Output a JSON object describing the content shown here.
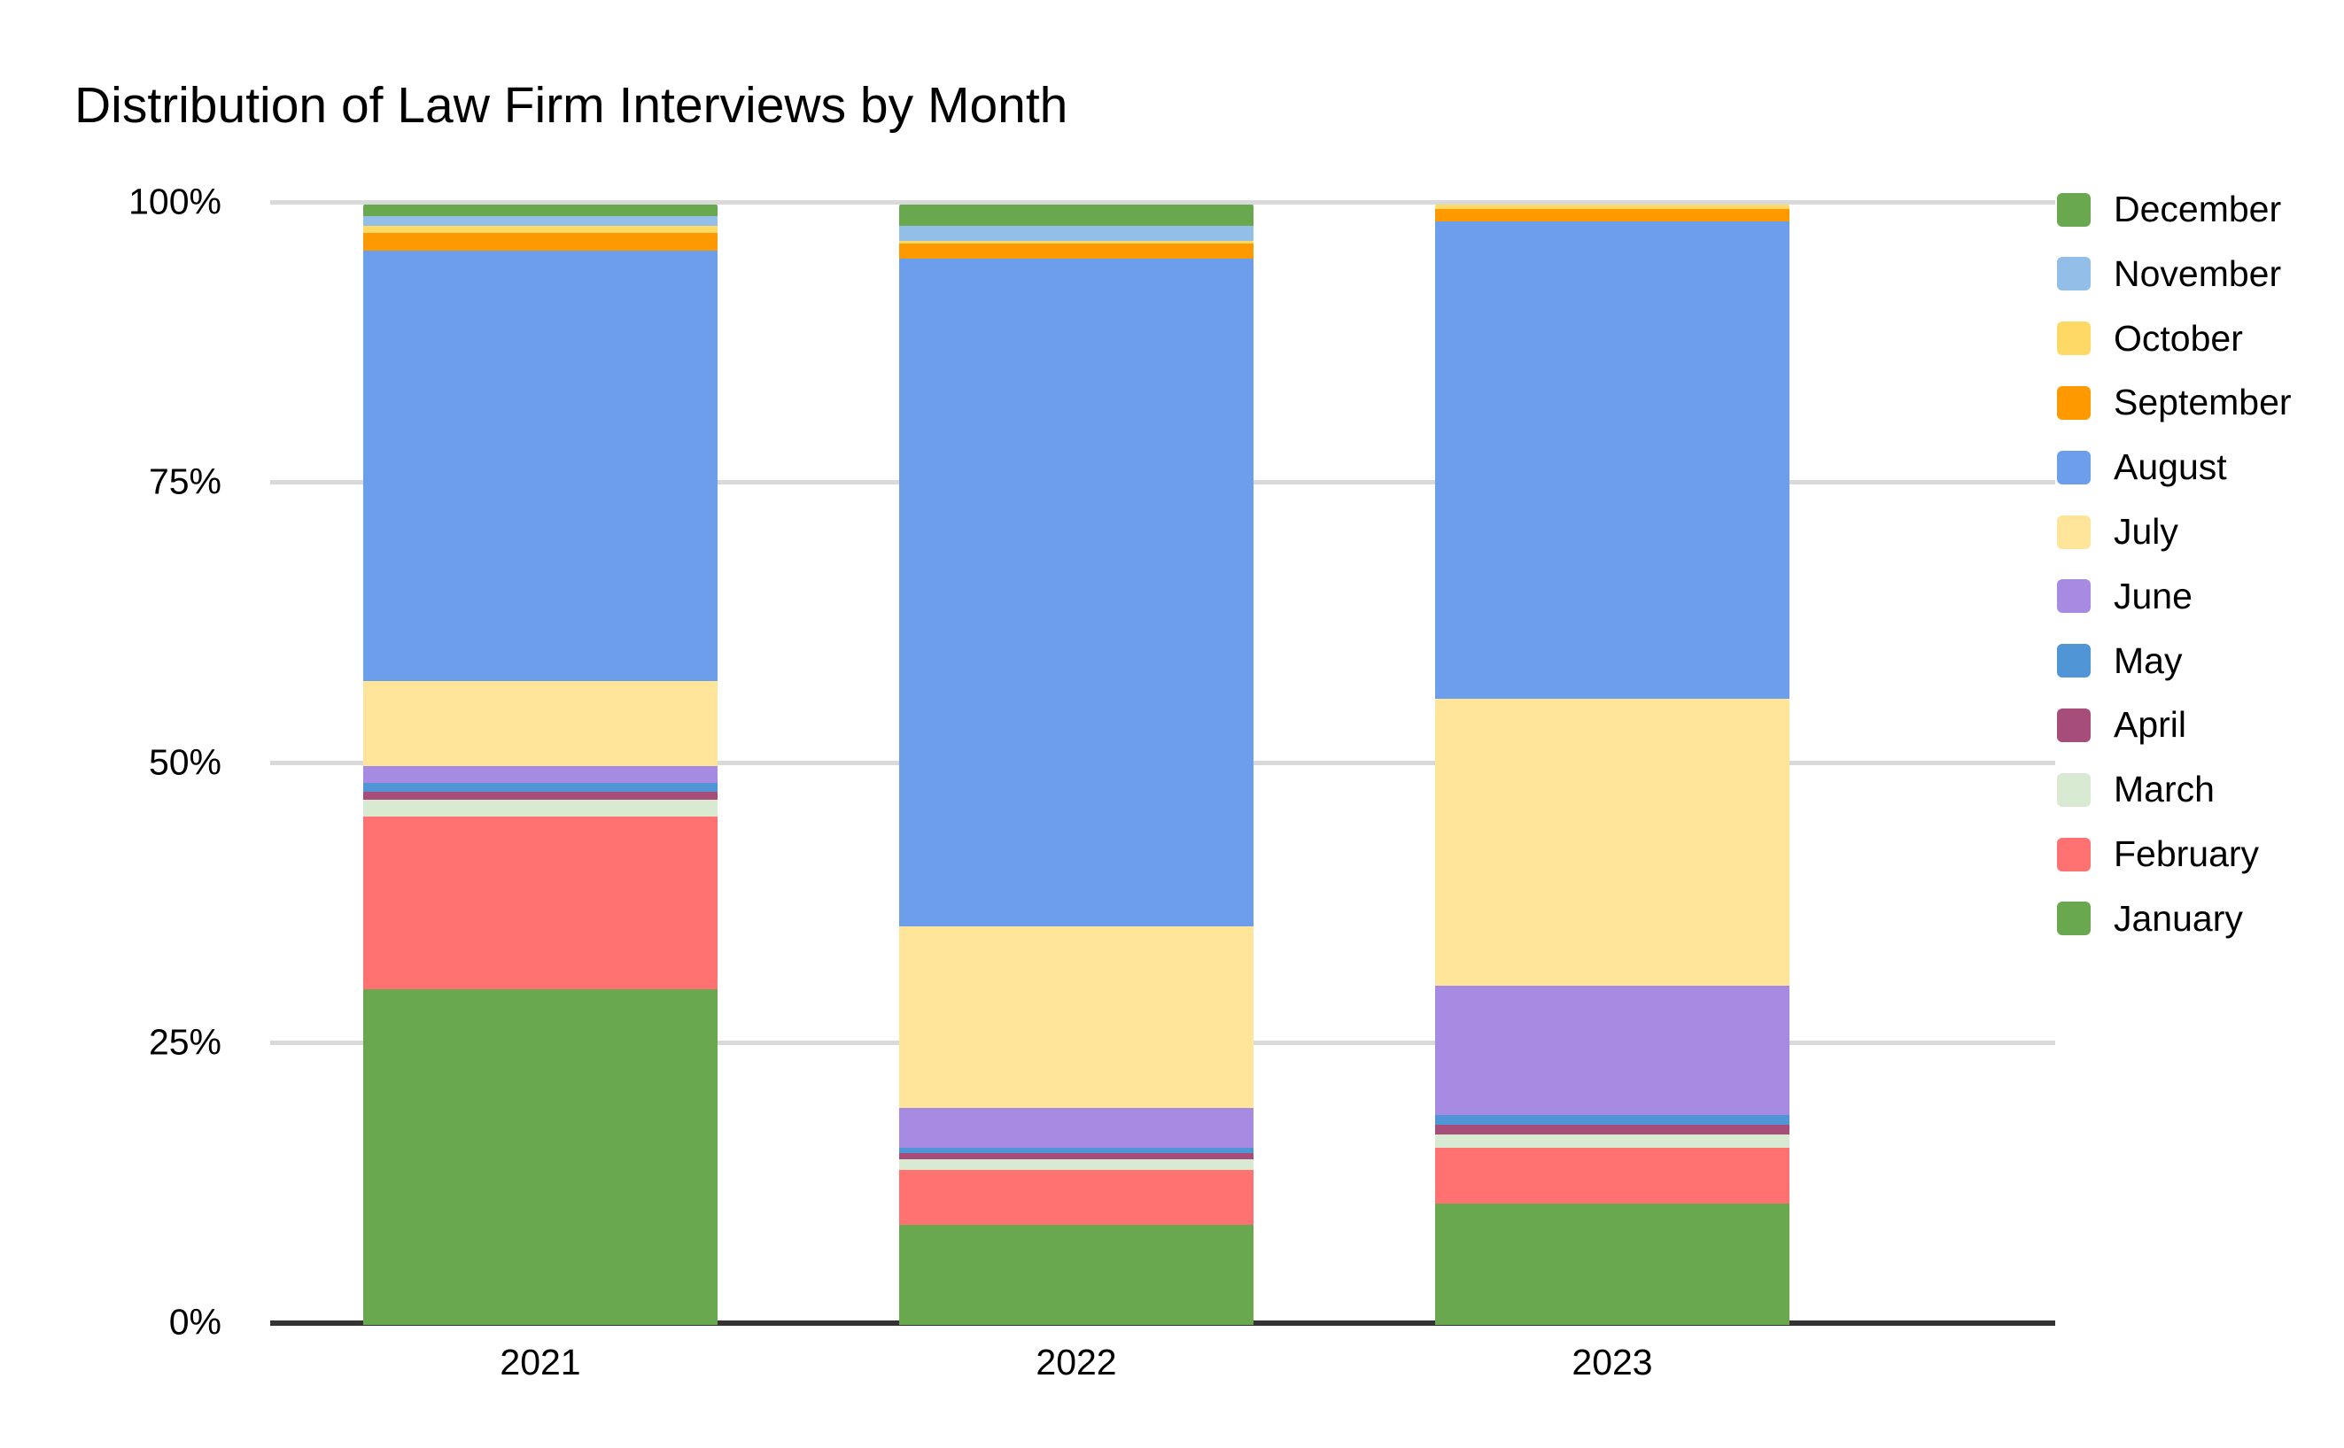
{
  "title": "Distribution of Law Firm Interviews by Month",
  "colors": {
    "December": "#6aa84f",
    "November": "#93bee7",
    "October": "#ffd966",
    "September": "#ff9900",
    "August": "#6d9eeb",
    "July": "#ffe599",
    "June": "#a78be2",
    "May": "#5095d6",
    "April": "#a64d79",
    "March": "#d9ead3",
    "February": "#ff7271",
    "January": "#6aa84f"
  },
  "chart_data": {
    "type": "bar",
    "subtype": "stacked-100-percent",
    "title": "Distribution of Law Firm Interviews by Month",
    "categories": [
      "2021",
      "2022",
      "2023"
    ],
    "series": [
      {
        "name": "December",
        "values": [
          1.0,
          1.9,
          0.0
        ]
      },
      {
        "name": "November",
        "values": [
          0.9,
          1.3,
          0.0
        ]
      },
      {
        "name": "October",
        "values": [
          0.6,
          0.3,
          0.4
        ]
      },
      {
        "name": "September",
        "values": [
          1.6,
          1.3,
          1.1
        ]
      },
      {
        "name": "August",
        "values": [
          38.4,
          59.6,
          42.6
        ]
      },
      {
        "name": "July",
        "values": [
          7.6,
          16.2,
          25.6
        ]
      },
      {
        "name": "June",
        "values": [
          1.5,
          3.6,
          11.6
        ]
      },
      {
        "name": "May",
        "values": [
          0.8,
          0.5,
          0.8
        ]
      },
      {
        "name": "April",
        "values": [
          0.7,
          0.5,
          0.9
        ]
      },
      {
        "name": "March",
        "values": [
          1.5,
          1.0,
          1.2
        ]
      },
      {
        "name": "February",
        "values": [
          15.4,
          4.9,
          5.0
        ]
      },
      {
        "name": "January",
        "values": [
          30.0,
          8.9,
          10.8
        ]
      }
    ],
    "stack_order_bottom_to_top": [
      "January",
      "February",
      "March",
      "April",
      "May",
      "June",
      "July",
      "August",
      "September",
      "October",
      "November",
      "December"
    ],
    "legend_order": [
      "December",
      "November",
      "October",
      "September",
      "August",
      "July",
      "June",
      "May",
      "April",
      "March",
      "February",
      "January"
    ],
    "legend_position": "right",
    "xlabel": "",
    "ylabel": "",
    "y_tick_labels": [
      "0%",
      "25%",
      "50%",
      "75%",
      "100%"
    ],
    "ylim": [
      0,
      100
    ],
    "grid": "horizontal",
    "units": "percent"
  }
}
